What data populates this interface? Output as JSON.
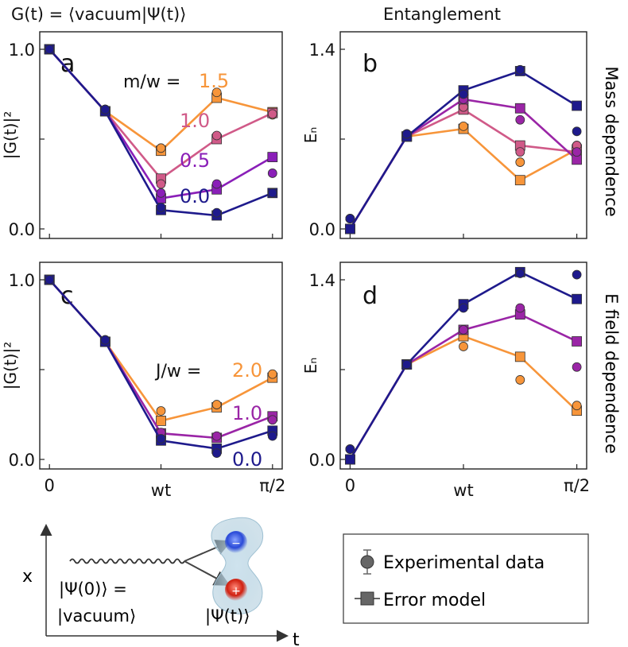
{
  "headers": {
    "left": "G(t) = ⟨vacuum|Ψ(t)⟩",
    "right": "Entanglement",
    "row1": "Mass dependence",
    "row2": "E field dependence"
  },
  "colors": {
    "orange": "#f7953a",
    "pink": "#d05a88",
    "purple": "#9a25a6",
    "violet": "#7a1ec4",
    "navy": "#1e1a8c",
    "gray": "#666666"
  },
  "panels": [
    {
      "id": "a",
      "letter": "a",
      "ylabel": "|G(t)|²",
      "yticks": [
        "0.0",
        "1.0"
      ],
      "legend_title": "m/w =",
      "series": [
        {
          "name": "1.5",
          "color": "#f7953a",
          "model": [
            1.0,
            0.655,
            0.435,
            0.73,
            0.65
          ],
          "exp": [
            1.0,
            0.665,
            0.45,
            0.76,
            0.635
          ]
        },
        {
          "name": "1.0",
          "color": "#d05a88",
          "model": [
            1.0,
            0.655,
            0.28,
            0.5,
            0.645
          ],
          "exp": [
            1.0,
            0.665,
            0.25,
            0.52,
            0.64
          ]
        },
        {
          "name": "0.5",
          "color": "#8a1fb8",
          "model": [
            1.0,
            0.655,
            0.17,
            0.22,
            0.4
          ],
          "exp": [
            1.0,
            0.665,
            0.2,
            0.25,
            0.31
          ]
        },
        {
          "name": "0.0",
          "color": "#1e1a8c",
          "model": [
            1.0,
            0.655,
            0.105,
            0.075,
            0.2
          ],
          "exp": [
            1.0,
            0.665,
            0.12,
            0.09,
            0.2
          ]
        }
      ]
    },
    {
      "id": "b",
      "letter": "b",
      "ylabel": "Eₙ",
      "yticks": [
        "0.0",
        "1.4"
      ],
      "series": [
        {
          "name": "orange",
          "color": "#f7953a",
          "model": [
            0.0,
            0.72,
            0.78,
            0.38,
            0.62
          ],
          "exp": [
            0.08,
            0.74,
            0.8,
            0.52,
            0.65
          ]
        },
        {
          "name": "pink",
          "color": "#d05a88",
          "model": [
            0.0,
            0.72,
            0.93,
            0.65,
            0.6
          ],
          "exp": [
            0.08,
            0.74,
            0.95,
            0.6,
            0.65
          ]
        },
        {
          "name": "purple",
          "color": "#9a25a6",
          "model": [
            0.0,
            0.72,
            1.01,
            0.94,
            0.54
          ],
          "exp": [
            0.08,
            0.74,
            1.01,
            0.85,
            0.6
          ]
        },
        {
          "name": "navy",
          "color": "#1e1a8c",
          "model": [
            0.0,
            0.72,
            1.08,
            1.23,
            0.96
          ],
          "exp": [
            0.08,
            0.74,
            1.05,
            1.24,
            0.76
          ]
        }
      ]
    },
    {
      "id": "c",
      "letter": "c",
      "ylabel": "|G(t)|²",
      "yticks": [
        "0.0",
        "1.0"
      ],
      "legend_title": "J/w =",
      "series": [
        {
          "name": "2.0",
          "color": "#f7953a",
          "model": [
            1.0,
            0.655,
            0.215,
            0.29,
            0.455
          ],
          "exp": [
            1.0,
            0.665,
            0.27,
            0.305,
            0.475
          ]
        },
        {
          "name": "1.0",
          "color": "#9a25a6",
          "model": [
            1.0,
            0.655,
            0.145,
            0.12,
            0.24
          ],
          "exp": [
            1.0,
            0.665,
            0.15,
            0.13,
            0.22
          ]
        },
        {
          "name": "0.0",
          "color": "#1e1a8c",
          "model": [
            1.0,
            0.655,
            0.105,
            0.06,
            0.16
          ],
          "exp": [
            1.0,
            0.665,
            0.115,
            0.035,
            0.13
          ]
        }
      ]
    },
    {
      "id": "d",
      "letter": "d",
      "ylabel": "Eₙ",
      "yticks": [
        "0.0",
        "1.4"
      ],
      "series": [
        {
          "name": "orange",
          "color": "#f7953a",
          "model": [
            0.0,
            0.74,
            0.96,
            0.8,
            0.38
          ],
          "exp": [
            0.08,
            0.74,
            0.88,
            0.62,
            0.42
          ]
        },
        {
          "name": "purple",
          "color": "#9a25a6",
          "model": [
            0.0,
            0.74,
            1.01,
            1.13,
            0.92
          ],
          "exp": [
            0.08,
            0.74,
            1.01,
            1.18,
            0.72
          ]
        },
        {
          "name": "navy",
          "color": "#1e1a8c",
          "model": [
            0.0,
            0.74,
            1.21,
            1.46,
            1.25
          ],
          "exp": [
            0.08,
            0.74,
            1.18,
            1.45,
            1.44
          ]
        }
      ]
    }
  ],
  "chart_data": [
    {
      "type": "line",
      "panel": "a",
      "x": [
        "0",
        "",
        "wt",
        "",
        "π/2"
      ],
      "ylabel": "|G(t)|²",
      "ylim": [
        0,
        1
      ],
      "legend_title": "m/w",
      "series": [
        {
          "name": "1.5",
          "model": [
            1.0,
            0.655,
            0.435,
            0.73,
            0.65
          ],
          "experiment": [
            1.0,
            0.665,
            0.45,
            0.76,
            0.635
          ]
        },
        {
          "name": "1.0",
          "model": [
            1.0,
            0.655,
            0.28,
            0.5,
            0.645
          ],
          "experiment": [
            1.0,
            0.665,
            0.25,
            0.52,
            0.64
          ]
        },
        {
          "name": "0.5",
          "model": [
            1.0,
            0.655,
            0.17,
            0.22,
            0.4
          ],
          "experiment": [
            1.0,
            0.665,
            0.2,
            0.25,
            0.31
          ]
        },
        {
          "name": "0.0",
          "model": [
            1.0,
            0.655,
            0.105,
            0.075,
            0.2
          ],
          "experiment": [
            1.0,
            0.665,
            0.12,
            0.09,
            0.2
          ]
        }
      ]
    },
    {
      "type": "line",
      "panel": "b",
      "x": [
        "0",
        "",
        "wt",
        "",
        "π/2"
      ],
      "ylabel": "Eₙ",
      "ylim": [
        0,
        1.4
      ],
      "series": [
        {
          "model": [
            0.0,
            0.72,
            0.78,
            0.38,
            0.62
          ],
          "experiment": [
            0.08,
            0.74,
            0.8,
            0.52,
            0.65
          ]
        },
        {
          "model": [
            0.0,
            0.72,
            0.93,
            0.65,
            0.6
          ],
          "experiment": [
            0.08,
            0.74,
            0.95,
            0.6,
            0.65
          ]
        },
        {
          "model": [
            0.0,
            0.72,
            1.01,
            0.94,
            0.54
          ],
          "experiment": [
            0.08,
            0.74,
            1.01,
            0.85,
            0.6
          ]
        },
        {
          "model": [
            0.0,
            0.72,
            1.08,
            1.23,
            0.96
          ],
          "experiment": [
            0.08,
            0.74,
            1.05,
            1.24,
            0.76
          ]
        }
      ]
    },
    {
      "type": "line",
      "panel": "c",
      "x": [
        "0",
        "",
        "wt",
        "",
        "π/2"
      ],
      "ylabel": "|G(t)|²",
      "ylim": [
        0,
        1
      ],
      "legend_title": "J/w",
      "series": [
        {
          "name": "2.0",
          "model": [
            1.0,
            0.655,
            0.215,
            0.29,
            0.455
          ],
          "experiment": [
            1.0,
            0.665,
            0.27,
            0.305,
            0.475
          ]
        },
        {
          "name": "1.0",
          "model": [
            1.0,
            0.655,
            0.145,
            0.12,
            0.24
          ],
          "experiment": [
            1.0,
            0.665,
            0.15,
            0.13,
            0.22
          ]
        },
        {
          "name": "0.0",
          "model": [
            1.0,
            0.655,
            0.105,
            0.06,
            0.16
          ],
          "experiment": [
            1.0,
            0.665,
            0.115,
            0.035,
            0.13
          ]
        }
      ]
    },
    {
      "type": "line",
      "panel": "d",
      "x": [
        "0",
        "",
        "wt",
        "",
        "π/2"
      ],
      "ylabel": "Eₙ",
      "ylim": [
        0,
        1.4
      ],
      "series": [
        {
          "model": [
            0.0,
            0.74,
            0.96,
            0.8,
            0.38
          ],
          "experiment": [
            0.08,
            0.74,
            0.88,
            0.62,
            0.42
          ]
        },
        {
          "model": [
            0.0,
            0.74,
            1.01,
            1.13,
            0.92
          ],
          "experiment": [
            0.08,
            0.74,
            1.01,
            1.18,
            0.72
          ]
        },
        {
          "model": [
            0.0,
            0.74,
            1.21,
            1.46,
            1.25
          ],
          "experiment": [
            0.08,
            0.74,
            1.18,
            1.45,
            1.44
          ]
        }
      ]
    }
  ],
  "xticks": [
    "0",
    "wt",
    "π/2"
  ],
  "legend": {
    "experimental": "Experimental data",
    "model": "Error model"
  },
  "schematic": {
    "axis_x": "x",
    "axis_t": "t",
    "label_initial": "|Ψ(0)⟩ =",
    "label_vacuum": "|vacuum⟩",
    "label_final": "|Ψ(t)⟩",
    "minus_sign": "−",
    "plus_sign": "+"
  }
}
